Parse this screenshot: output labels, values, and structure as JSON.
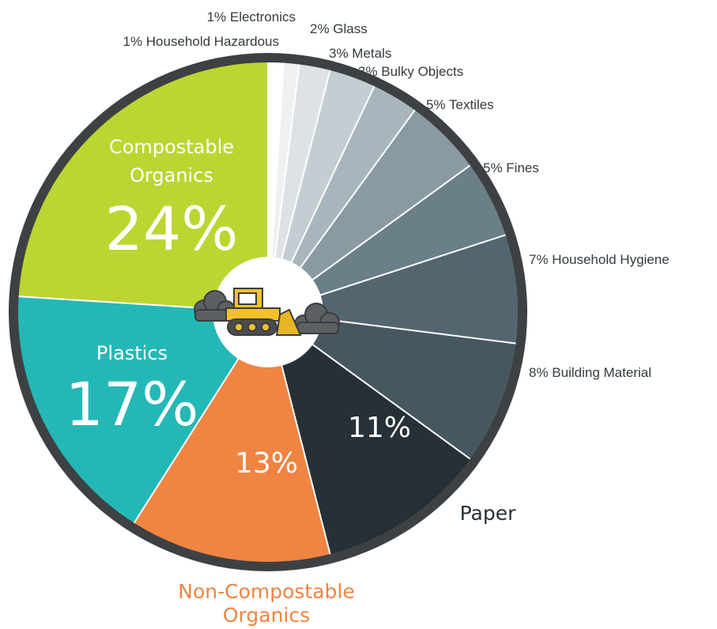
{
  "chart_data": {
    "type": "pie",
    "slices": [
      {
        "label": "Electronics",
        "value": 1,
        "color": "#ffffff",
        "label_text": "1% Electronics",
        "anchor": "end"
      },
      {
        "label": "Household Hazardous",
        "value": 1,
        "color": "#eef0f1",
        "label_text": "1% Household Hazardous",
        "anchor": "end"
      },
      {
        "label": "Glass",
        "value": 2,
        "color": "#dde2e5",
        "label_text": "2% Glass",
        "anchor": "start"
      },
      {
        "label": "Metals",
        "value": 3,
        "color": "#c4cdd2",
        "label_text": "3% Metals",
        "anchor": "start"
      },
      {
        "label": "Bulky Objects",
        "value": 3,
        "color": "#a8b5bc",
        "label_text": "3% Bulky Objects",
        "anchor": "start"
      },
      {
        "label": "Textiles",
        "value": 5,
        "color": "#8a9aa3",
        "label_text": "5% Textiles",
        "anchor": "start"
      },
      {
        "label": "Fines",
        "value": 5,
        "color": "#6b7f88",
        "label_text": "5% Fines",
        "anchor": "start"
      },
      {
        "label": "Household Hygiene",
        "value": 7,
        "color": "#536670",
        "label_text": "7% Household Hygiene",
        "anchor": "start"
      },
      {
        "label": "Building Material",
        "value": 8,
        "color": "#46575f",
        "label_text": "8% Building Material",
        "anchor": "start"
      },
      {
        "label": "Paper",
        "value": 11,
        "color": "#263036",
        "pct_text": "11%",
        "name_text": "Paper",
        "name_color": "#263036"
      },
      {
        "label": "Non-Compostable Organics",
        "value": 13,
        "color": "#f08442",
        "pct_text": "13%",
        "name_text": [
          "Non-Compostable",
          "Organics"
        ],
        "name_color": "#f08442"
      },
      {
        "label": "Plastics",
        "value": 17,
        "color": "#23b8b6",
        "pct_text": "17%",
        "name_text": "Plastics"
      },
      {
        "label": "Compostable Organics",
        "value": 24,
        "color": "#bdd531",
        "pct_text": "24%",
        "name_text": [
          "Compostable",
          "Organics"
        ]
      }
    ],
    "ring_color": "#3e4143",
    "center_color": "#ffffff",
    "center_icon": "bulldozer-icon"
  }
}
